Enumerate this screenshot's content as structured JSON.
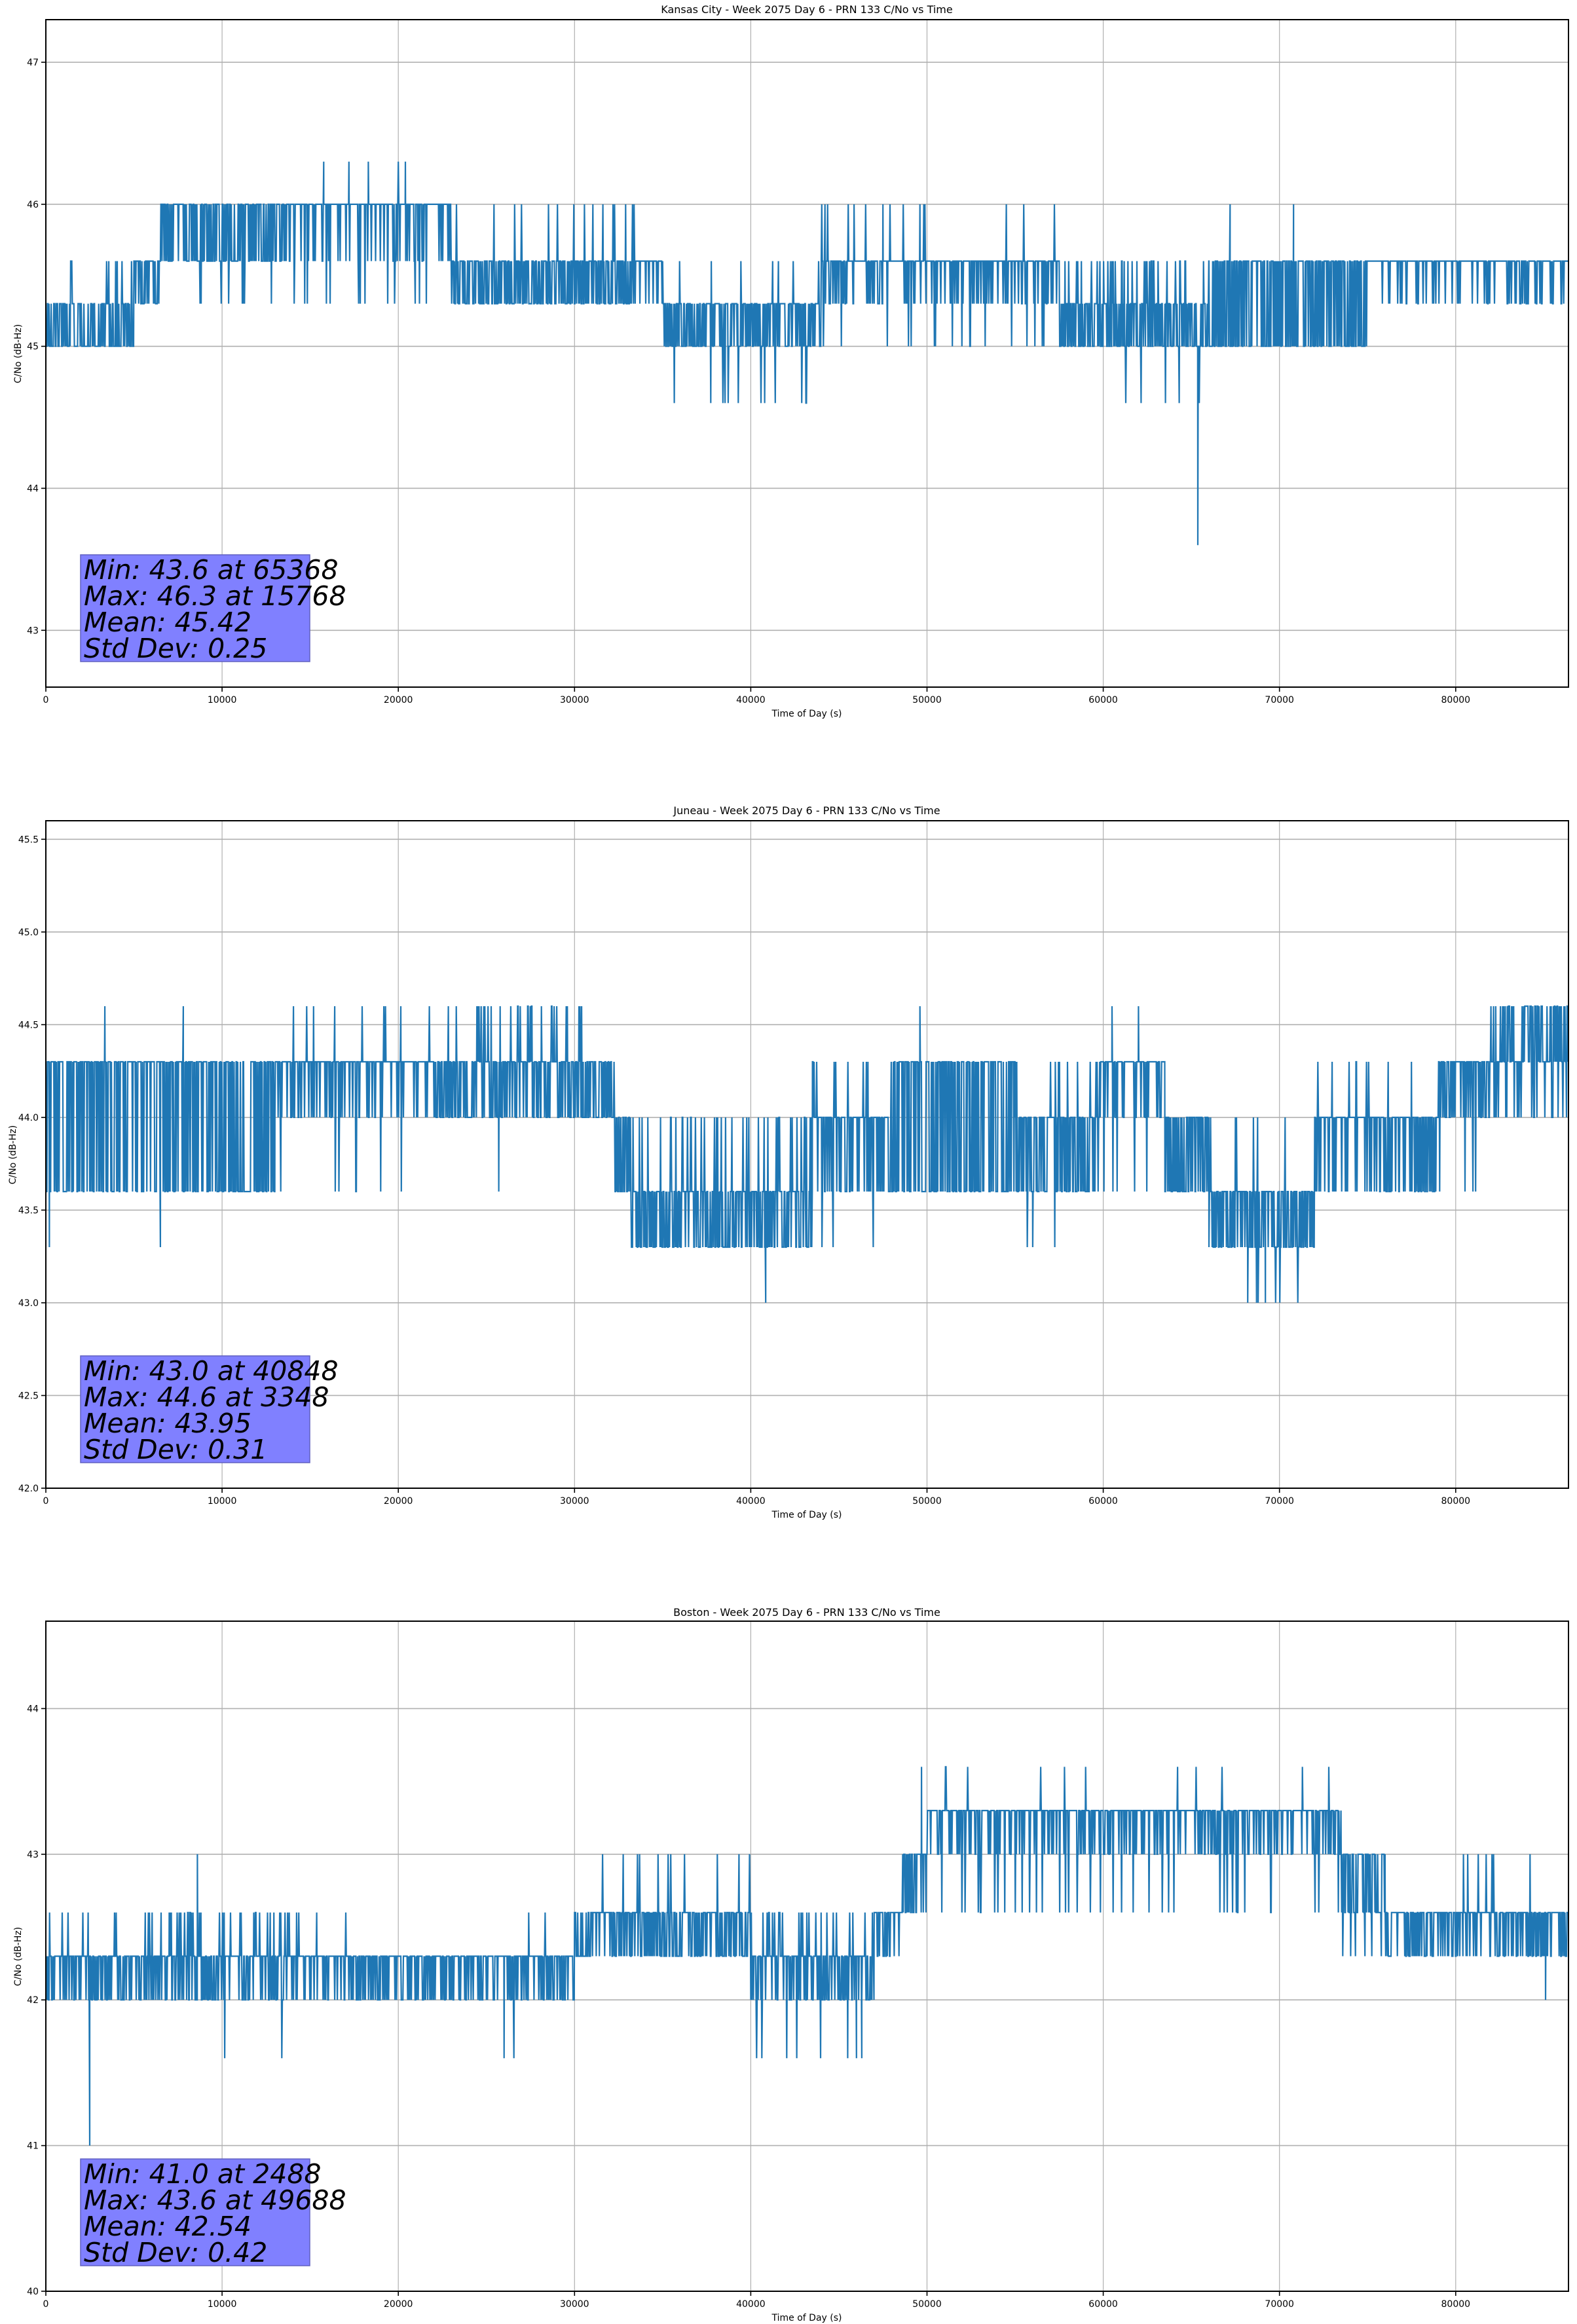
{
  "figure": {
    "line_color": "#1f77b4",
    "grid_color": "#b0b0b0",
    "stats_box_color": "#8080ff"
  },
  "chart_data": [
    {
      "type": "line",
      "title": "Kansas City - Week 2075 Day 6 - PRN 133 C/No vs Time",
      "xlabel": "Time of Day (s)",
      "ylabel": "C/No (dB-Hz)",
      "xlim": [
        0,
        86400
      ],
      "ylim": [
        42.6,
        47.3
      ],
      "xticks": [
        0,
        10000,
        20000,
        30000,
        40000,
        50000,
        60000,
        70000,
        80000
      ],
      "yticks": [
        43,
        44,
        45,
        46,
        47
      ],
      "ytick_labels": [
        "43",
        "44",
        "45",
        "46",
        "47"
      ],
      "grid": true,
      "stats": {
        "lines": [
          "Min: 43.6 at 65368",
          "Max: 46.3 at 15768",
          "Mean: 45.42",
          "Std Dev: 0.25"
        ],
        "min": 43.6,
        "min_at": 65368,
        "max": 46.3,
        "max_at": 15768,
        "mean": 45.42,
        "std": 0.25,
        "placement": "bottom-left"
      },
      "levels": [
        43.6,
        44.6,
        45.0,
        45.3,
        45.6,
        46.0,
        46.3
      ],
      "segments": [
        {
          "t0": 0,
          "t1": 5000,
          "low": 45.0,
          "high": 45.3,
          "p": 0.45,
          "spike": 45.6,
          "sp": 0.05
        },
        {
          "t0": 5000,
          "t1": 6500,
          "low": 45.3,
          "high": 45.6,
          "p": 0.6
        },
        {
          "t0": 6500,
          "t1": 14000,
          "low": 45.6,
          "high": 46.0,
          "p": 0.55,
          "dip": 45.3,
          "dp": 0.06
        },
        {
          "t0": 14000,
          "t1": 23000,
          "low": 45.6,
          "high": 46.0,
          "p": 0.85,
          "spike": 46.3,
          "sp": 0.01,
          "dip": 45.3,
          "dp": 0.03
        },
        {
          "t0": 23000,
          "t1": 33500,
          "low": 45.3,
          "high": 45.6,
          "p": 0.55,
          "spike": 46.0,
          "sp": 0.05
        },
        {
          "t0": 33500,
          "t1": 35000,
          "low": 45.3,
          "high": 45.6,
          "p": 0.8
        },
        {
          "t0": 35000,
          "t1": 44000,
          "low": 45.0,
          "high": 45.3,
          "p": 0.6,
          "dip": 44.6,
          "dp": 0.05,
          "spike": 45.6,
          "sp": 0.02
        },
        {
          "t0": 44000,
          "t1": 57500,
          "low": 45.3,
          "high": 45.6,
          "p": 0.8,
          "spike": 46.0,
          "sp": 0.02,
          "dip": 45.0,
          "dp": 0.03
        },
        {
          "t0": 57500,
          "t1": 66000,
          "low": 45.0,
          "high": 45.3,
          "p": 0.5,
          "spike": 45.6,
          "sp": 0.1,
          "dip": 44.6,
          "dp": 0.02
        },
        {
          "t0": 66000,
          "t1": 75000,
          "low": 45.0,
          "high": 45.6,
          "p": 0.5,
          "dip": 45.0,
          "dp": 0.04
        },
        {
          "t0": 75000,
          "t1": 86400,
          "low": 45.3,
          "high": 45.6,
          "p": 0.85
        }
      ],
      "events": [
        {
          "t": 15768,
          "v": 46.3
        },
        {
          "t": 17200,
          "v": 46.3
        },
        {
          "t": 18300,
          "v": 46.3
        },
        {
          "t": 20400,
          "v": 46.3
        },
        {
          "t": 65368,
          "v": 43.6
        },
        {
          "t": 49600,
          "v": 46.0
        },
        {
          "t": 47500,
          "v": 46.0
        },
        {
          "t": 67200,
          "v": 46.0
        },
        {
          "t": 70800,
          "v": 46.0
        }
      ]
    },
    {
      "type": "line",
      "title": "Juneau - Week 2075 Day 6 - PRN 133 C/No vs Time",
      "xlabel": "Time of Day (s)",
      "ylabel": "C/No (dB-Hz)",
      "xlim": [
        0,
        86400
      ],
      "ylim": [
        42.0,
        45.6
      ],
      "xticks": [
        0,
        10000,
        20000,
        30000,
        40000,
        50000,
        60000,
        70000,
        80000
      ],
      "yticks": [
        42.0,
        42.5,
        43.0,
        43.5,
        44.0,
        44.5,
        45.0,
        45.5
      ],
      "ytick_labels": [
        "42.0",
        "42.5",
        "43.0",
        "43.5",
        "44.0",
        "44.5",
        "45.0",
        "45.5"
      ],
      "grid": true,
      "stats": {
        "lines": [
          "Min: 43.0 at 40848",
          "Max: 44.6 at 3348",
          "Mean: 43.95",
          "Std Dev: 0.31"
        ],
        "min": 43.0,
        "min_at": 40848,
        "max": 44.6,
        "max_at": 3348,
        "mean": 43.95,
        "std": 0.31,
        "placement": "bottom-left"
      },
      "levels": [
        43.0,
        43.3,
        43.6,
        44.0,
        44.3,
        44.6
      ],
      "segments": [
        {
          "t0": 0,
          "t1": 13000,
          "low": 43.6,
          "high": 44.3,
          "p": 0.55,
          "spike": 44.6,
          "sp": 0.003
        },
        {
          "t0": 13000,
          "t1": 22000,
          "low": 44.0,
          "high": 44.3,
          "p": 0.8,
          "spike": 44.6,
          "sp": 0.03,
          "dip": 43.6,
          "dp": 0.02
        },
        {
          "t0": 22000,
          "t1": 30500,
          "low": 44.0,
          "high": 44.3,
          "p": 0.6,
          "spike": 44.6,
          "sp": 0.08
        },
        {
          "t0": 30500,
          "t1": 32300,
          "low": 44.0,
          "high": 44.3,
          "p": 0.6
        },
        {
          "t0": 32300,
          "t1": 33200,
          "low": 43.6,
          "high": 44.0,
          "p": 0.5
        },
        {
          "t0": 33200,
          "t1": 43500,
          "low": 43.3,
          "high": 43.6,
          "p": 0.55,
          "spike": 44.0,
          "sp": 0.1
        },
        {
          "t0": 43500,
          "t1": 48000,
          "low": 43.6,
          "high": 44.0,
          "p": 0.7,
          "spike": 44.3,
          "sp": 0.06,
          "dip": 43.3,
          "dp": 0.03
        },
        {
          "t0": 48000,
          "t1": 55000,
          "low": 43.6,
          "high": 44.3,
          "p": 0.55
        },
        {
          "t0": 55000,
          "t1": 59800,
          "low": 43.6,
          "high": 44.0,
          "p": 0.6,
          "dip": 43.3,
          "dp": 0.03,
          "spike": 44.3,
          "sp": 0.05
        },
        {
          "t0": 59800,
          "t1": 63500,
          "low": 44.0,
          "high": 44.3,
          "p": 0.8,
          "dip": 43.6,
          "dp": 0.05
        },
        {
          "t0": 63500,
          "t1": 66000,
          "low": 43.6,
          "high": 44.0,
          "p": 0.6
        },
        {
          "t0": 66000,
          "t1": 72000,
          "low": 43.3,
          "high": 43.6,
          "p": 0.55,
          "dip": 43.0,
          "dp": 0.03,
          "spike": 44.0,
          "sp": 0.05
        },
        {
          "t0": 72000,
          "t1": 79000,
          "low": 43.6,
          "high": 44.0,
          "p": 0.7,
          "spike": 44.3,
          "sp": 0.05
        },
        {
          "t0": 79000,
          "t1": 82000,
          "low": 44.0,
          "high": 44.3,
          "p": 0.7,
          "dip": 43.6,
          "dp": 0.05
        },
        {
          "t0": 82000,
          "t1": 86400,
          "low": 44.3,
          "high": 44.6,
          "p": 0.4,
          "dip": 44.0,
          "dp": 0.15
        }
      ],
      "events": [
        {
          "t": 3348,
          "v": 44.6
        },
        {
          "t": 40848,
          "v": 43.0
        },
        {
          "t": 6500,
          "v": 43.3
        },
        {
          "t": 200,
          "v": 43.3
        },
        {
          "t": 7800,
          "v": 44.6
        },
        {
          "t": 25700,
          "v": 43.6
        },
        {
          "t": 49600,
          "v": 44.6
        },
        {
          "t": 60500,
          "v": 44.6
        },
        {
          "t": 62000,
          "v": 44.6
        },
        {
          "t": 68200,
          "v": 43.0
        },
        {
          "t": 68700,
          "v": 43.0
        },
        {
          "t": 69200,
          "v": 43.0
        },
        {
          "t": 56000,
          "v": 43.3
        }
      ]
    },
    {
      "type": "line",
      "title": "Boston - Week 2075 Day 6 - PRN 133 C/No vs Time",
      "xlabel": "Time of Day (s)",
      "ylabel": "C/No (dB-Hz)",
      "xlim": [
        0,
        86400
      ],
      "ylim": [
        40.0,
        44.6
      ],
      "xticks": [
        0,
        10000,
        20000,
        30000,
        40000,
        50000,
        60000,
        70000,
        80000
      ],
      "yticks": [
        40,
        41,
        42,
        43,
        44
      ],
      "ytick_labels": [
        "40",
        "41",
        "42",
        "43",
        "44"
      ],
      "grid": true,
      "stats": {
        "lines": [
          "Min: 41.0 at 2488",
          "Max: 43.6 at 49688",
          "Mean: 42.54",
          "Std Dev: 0.42"
        ],
        "min": 41.0,
        "min_at": 2488,
        "max": 43.6,
        "max_at": 49688,
        "mean": 42.54,
        "std": 0.42,
        "placement": "bottom-left"
      },
      "levels": [
        41.0,
        41.6,
        42.0,
        42.3,
        42.6,
        43.0,
        43.3,
        43.6
      ],
      "segments": [
        {
          "t0": 0,
          "t1": 7000,
          "low": 42.0,
          "high": 42.3,
          "p": 0.7,
          "spike": 42.6,
          "sp": 0.03,
          "dip": 41.6,
          "dp": 0.003
        },
        {
          "t0": 7000,
          "t1": 14500,
          "low": 42.0,
          "high": 42.3,
          "p": 0.7,
          "spike": 42.6,
          "sp": 0.15,
          "dip": 41.6,
          "dp": 0.01
        },
        {
          "t0": 14500,
          "t1": 30000,
          "low": 42.0,
          "high": 42.3,
          "p": 0.75,
          "spike": 42.6,
          "sp": 0.01,
          "dip": 41.6,
          "dp": 0.006
        },
        {
          "t0": 30000,
          "t1": 31500,
          "low": 42.3,
          "high": 42.6,
          "p": 0.5
        },
        {
          "t0": 31500,
          "t1": 40000,
          "low": 42.3,
          "high": 42.6,
          "p": 0.6,
          "spike": 43.0,
          "sp": 0.06
        },
        {
          "t0": 40000,
          "t1": 47000,
          "low": 42.0,
          "high": 42.3,
          "p": 0.6,
          "spike": 42.6,
          "sp": 0.12,
          "dip": 41.6,
          "dp": 0.02
        },
        {
          "t0": 47000,
          "t1": 48500,
          "low": 42.3,
          "high": 42.6,
          "p": 0.7
        },
        {
          "t0": 48500,
          "t1": 50000,
          "low": 42.6,
          "high": 43.0,
          "p": 0.6
        },
        {
          "t0": 50000,
          "t1": 73500,
          "low": 43.0,
          "high": 43.3,
          "p": 0.8,
          "spike": 43.6,
          "sp": 0.02,
          "dip": 42.6,
          "dp": 0.06
        },
        {
          "t0": 73500,
          "t1": 76000,
          "low": 42.6,
          "high": 43.0,
          "p": 0.6,
          "dip": 42.3,
          "dp": 0.05
        },
        {
          "t0": 76000,
          "t1": 86400,
          "low": 42.3,
          "high": 42.6,
          "p": 0.7,
          "spike": 43.0,
          "sp": 0.02
        }
      ],
      "events": [
        {
          "t": 2488,
          "v": 41.0
        },
        {
          "t": 49688,
          "v": 43.6
        },
        {
          "t": 8600,
          "v": 43.0
        },
        {
          "t": 85100,
          "v": 42.0
        },
        {
          "t": 45500,
          "v": 41.6
        },
        {
          "t": 46000,
          "v": 41.6
        },
        {
          "t": 46300,
          "v": 41.6
        },
        {
          "t": 26000,
          "v": 41.6
        }
      ]
    }
  ]
}
